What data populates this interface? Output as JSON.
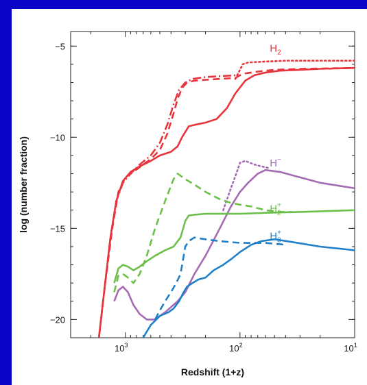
{
  "chart_data": {
    "type": "line",
    "title": "",
    "xlabel": "Redshift (1+z)",
    "ylabel": "log (number fraction)",
    "x_scale": "log-reversed",
    "xlim": [
      3000,
      10
    ],
    "ylim": [
      -21,
      -4.2
    ],
    "x_ticks": [
      {
        "value": 1000,
        "base": "10",
        "exp": "3"
      },
      {
        "value": 100,
        "base": "10",
        "exp": "2"
      },
      {
        "value": 10,
        "base": "10",
        "exp": "1"
      }
    ],
    "y_ticks": [
      {
        "value": -5,
        "label": "−5"
      },
      {
        "value": -10,
        "label": "−10"
      },
      {
        "value": -15,
        "label": "−15"
      },
      {
        "value": -20,
        "label": "−20"
      }
    ],
    "colors": {
      "H2": "#e8343c",
      "Hminus": "#a56ab4",
      "H2plus": "#6cc04a",
      "H3plus": "#1f7fc8",
      "background": "#0a06c8"
    },
    "series": [
      {
        "name": "H",
        "sub": "2",
        "sup": "",
        "color_key": "H2",
        "label_pos": [
          55,
          -5.3
        ],
        "lines": [
          {
            "style": "solid",
            "points": [
              [
                1700,
                -21
              ],
              [
                1500,
                -18
              ],
              [
                1350,
                -15.5
              ],
              [
                1200,
                -13.5
              ],
              [
                1050,
                -12.4
              ],
              [
                900,
                -11.9
              ],
              [
                750,
                -11.6
              ],
              [
                600,
                -11.3
              ],
              [
                500,
                -11
              ],
              [
                400,
                -10.8
              ],
              [
                350,
                -10.5
              ],
              [
                320,
                -10
              ],
              [
                280,
                -9.4
              ],
              [
                240,
                -9.3
              ],
              [
                200,
                -9.2
              ],
              [
                160,
                -9
              ],
              [
                130,
                -8.4
              ],
              [
                110,
                -7.6
              ],
              [
                90,
                -6.9
              ],
              [
                75,
                -6.6
              ],
              [
                60,
                -6.45
              ],
              [
                45,
                -6.35
              ],
              [
                30,
                -6.3
              ],
              [
                20,
                -6.25
              ],
              [
                10,
                -6.2
              ]
            ]
          },
          {
            "style": "dash",
            "points": [
              [
                1700,
                -21
              ],
              [
                1500,
                -18
              ],
              [
                1300,
                -15
              ],
              [
                1150,
                -13
              ],
              [
                1000,
                -12.2
              ],
              [
                850,
                -11.9
              ],
              [
                700,
                -11.5
              ],
              [
                600,
                -11.2
              ],
              [
                500,
                -10.7
              ],
              [
                430,
                -9.8
              ],
              [
                380,
                -8.7
              ],
              [
                350,
                -7.9
              ],
              [
                320,
                -7.3
              ],
              [
                290,
                -7
              ],
              [
                250,
                -6.9
              ],
              [
                200,
                -6.85
              ],
              [
                150,
                -6.8
              ],
              [
                110,
                -6.75
              ],
              [
                100,
                -6.6
              ],
              [
                90,
                -6.5
              ],
              [
                70,
                -6.4
              ],
              [
                50,
                -6.3
              ],
              [
                30,
                -6.25
              ],
              [
                10,
                -6.2
              ]
            ]
          },
          {
            "style": "dot",
            "points": [
              [
                110,
                -6.8
              ],
              [
                100,
                -6.3
              ],
              [
                95,
                -6
              ],
              [
                85,
                -5.9
              ],
              [
                60,
                -5.85
              ],
              [
                40,
                -5.8
              ],
              [
                20,
                -5.8
              ],
              [
                10,
                -5.8
              ]
            ]
          },
          {
            "style": "dashdot",
            "points": [
              [
                1700,
                -21
              ],
              [
                1500,
                -18
              ],
              [
                1350,
                -15.5
              ],
              [
                1200,
                -13.5
              ],
              [
                1050,
                -12.5
              ],
              [
                900,
                -12
              ],
              [
                750,
                -11.5
              ],
              [
                600,
                -11
              ],
              [
                500,
                -10.3
              ],
              [
                430,
                -9.3
              ],
              [
                380,
                -8.2
              ],
              [
                340,
                -7.4
              ],
              [
                300,
                -7
              ],
              [
                260,
                -6.8
              ],
              [
                200,
                -6.7
              ],
              [
                150,
                -6.65
              ],
              [
                110,
                -6.6
              ]
            ]
          }
        ]
      },
      {
        "name": "H",
        "sub": "",
        "sup": "−",
        "color_key": "Hminus",
        "label_pos": [
          55,
          -11.6
        ],
        "lines": [
          {
            "style": "solid",
            "points": [
              [
                1250,
                -19
              ],
              [
                1150,
                -18.4
              ],
              [
                1050,
                -18.2
              ],
              [
                950,
                -18.5
              ],
              [
                850,
                -19.2
              ],
              [
                750,
                -19.7
              ],
              [
                650,
                -20
              ],
              [
                550,
                -20
              ],
              [
                450,
                -19.6
              ],
              [
                350,
                -19
              ],
              [
                300,
                -18.5
              ],
              [
                250,
                -17.5
              ],
              [
                200,
                -16.5
              ],
              [
                150,
                -15
              ],
              [
                120,
                -13.8
              ],
              [
                100,
                -13
              ],
              [
                85,
                -12.5
              ],
              [
                70,
                -12
              ],
              [
                60,
                -11.8
              ],
              [
                45,
                -11.9
              ],
              [
                30,
                -12.2
              ],
              [
                20,
                -12.5
              ],
              [
                10,
                -12.8
              ]
            ]
          },
          {
            "style": "dot",
            "points": [
              [
                140,
                -14
              ],
              [
                120,
                -12.8
              ],
              [
                105,
                -11.8
              ],
              [
                100,
                -11.4
              ],
              [
                90,
                -11.3
              ],
              [
                75,
                -11.5
              ],
              [
                65,
                -11.6
              ],
              [
                55,
                -11.7
              ]
            ]
          }
        ]
      },
      {
        "name": "H",
        "sub": "2",
        "sup": "+",
        "color_key": "H2plus",
        "label_pos": [
          55,
          -14.1
        ],
        "lines": [
          {
            "style": "solid",
            "points": [
              [
                1250,
                -18
              ],
              [
                1150,
                -17.2
              ],
              [
                1050,
                -17
              ],
              [
                950,
                -17.1
              ],
              [
                850,
                -17.3
              ],
              [
                750,
                -17.1
              ],
              [
                650,
                -16.8
              ],
              [
                550,
                -16.5
              ],
              [
                450,
                -16.2
              ],
              [
                380,
                -16
              ],
              [
                330,
                -15.5
              ],
              [
                300,
                -14.6
              ],
              [
                280,
                -14.3
              ],
              [
                250,
                -14.25
              ],
              [
                200,
                -14.2
              ],
              [
                100,
                -14.2
              ],
              [
                60,
                -14.15
              ],
              [
                30,
                -14.1
              ],
              [
                10,
                -14
              ]
            ]
          },
          {
            "style": "dash",
            "points": [
              [
                1250,
                -18.5
              ],
              [
                1150,
                -17.6
              ],
              [
                1050,
                -17.5
              ],
              [
                950,
                -17.7
              ],
              [
                850,
                -18
              ],
              [
                750,
                -17.5
              ],
              [
                650,
                -16.5
              ],
              [
                550,
                -15
              ],
              [
                450,
                -13.5
              ],
              [
                380,
                -12.3
              ],
              [
                350,
                -12
              ],
              [
                300,
                -12.3
              ],
              [
                250,
                -12.6
              ],
              [
                200,
                -13
              ],
              [
                150,
                -13.4
              ],
              [
                120,
                -13.6
              ],
              [
                100,
                -13.7
              ],
              [
                80,
                -13.8
              ],
              [
                60,
                -14
              ],
              [
                45,
                -14.1
              ],
              [
                35,
                -14.1
              ]
            ]
          }
        ]
      },
      {
        "name": "H",
        "sub": "3",
        "sup": "+",
        "color_key": "H3plus",
        "label_pos": [
          55,
          -15.6
        ],
        "lines": [
          {
            "style": "solid",
            "points": [
              [
                700,
                -21
              ],
              [
                600,
                -20.3
              ],
              [
                500,
                -19.8
              ],
              [
                420,
                -19.6
              ],
              [
                380,
                -19.4
              ],
              [
                340,
                -19
              ],
              [
                310,
                -18.5
              ],
              [
                290,
                -18.2
              ],
              [
                260,
                -18
              ],
              [
                230,
                -17.8
              ],
              [
                200,
                -17.7
              ],
              [
                170,
                -17.3
              ],
              [
                140,
                -17
              ],
              [
                120,
                -16.7
              ],
              [
                100,
                -16.3
              ],
              [
                80,
                -15.9
              ],
              [
                65,
                -15.7
              ],
              [
                50,
                -15.6
              ],
              [
                35,
                -15.75
              ],
              [
                20,
                -16
              ],
              [
                10,
                -16.2
              ]
            ]
          },
          {
            "style": "dash",
            "points": [
              [
                550,
                -20
              ],
              [
                500,
                -19.5
              ],
              [
                450,
                -19
              ],
              [
                400,
                -18.5
              ],
              [
                360,
                -18
              ],
              [
                330,
                -17.5
              ],
              [
                300,
                -16
              ],
              [
                280,
                -15.7
              ],
              [
                250,
                -15.5
              ],
              [
                200,
                -15.6
              ],
              [
                150,
                -15.7
              ],
              [
                100,
                -15.8
              ],
              [
                60,
                -15.8
              ],
              [
                40,
                -15.9
              ]
            ]
          }
        ]
      }
    ]
  }
}
